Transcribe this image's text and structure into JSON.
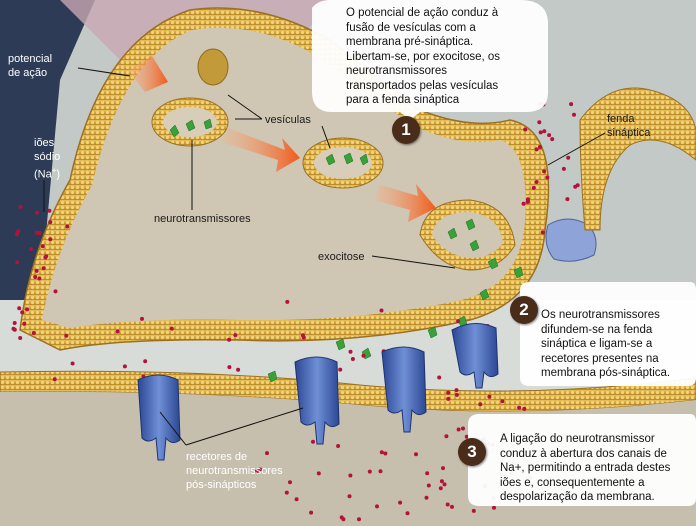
{
  "labels": {
    "potencial_acao": [
      "potencial",
      "de ação"
    ],
    "ioes_sodio": [
      "iões",
      "sódio",
      "(Na",
      "+",
      ")"
    ],
    "vesiculas": "vesículas",
    "neurotransmissores": "neurotransmissores",
    "exocitose": "exocitose",
    "fenda_sinaptica": [
      "fenda",
      "sináptica"
    ],
    "recetores": [
      "recetores de",
      "neurotransmissores",
      "pós-sinápticos"
    ]
  },
  "steps": [
    {
      "number": "1",
      "lines": [
        "O potencial de ação conduz à",
        "fusão de vesículas com a",
        "membrana pré-sináptica.",
        "Libertam-se, por exocitose, os",
        "neurotransmissores",
        "transportados pelas vesículas",
        "para a fenda sináptica"
      ]
    },
    {
      "number": "2",
      "lines": [
        "Os neurotransmissores",
        "difundem-se na fenda",
        "sináptica e ligam-se a",
        "recetores presentes na",
        "membrana pós-sináptica."
      ]
    },
    {
      "number": "3",
      "lines": [
        "A ligação do neurotransmissor",
        "conduz à abertura dos canais de",
        "Na+, permitindo a entrada destes",
        "iões e, consequentemente a",
        "despolarização da membrana."
      ]
    }
  ],
  "colors": {
    "membrane": "#d9a941",
    "cytoplasm": "#c9bfa8",
    "arrow": "#ef6a2a",
    "ion": "#b3123a",
    "receptor": "#3f5da8",
    "neurotransmitter": "#3aa13a",
    "number_badge": "#4a2c1a"
  }
}
